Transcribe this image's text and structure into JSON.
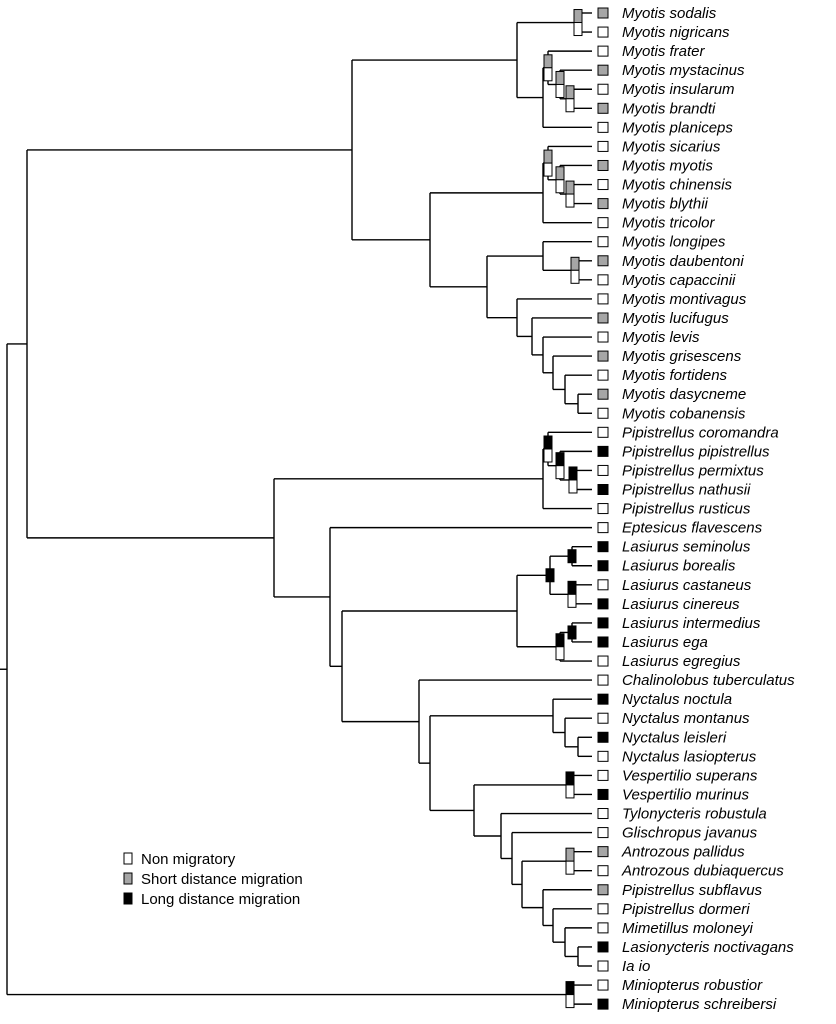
{
  "colors": {
    "non": "#ffffff",
    "short": "#a6a6a6",
    "long": "#000000",
    "line": "#000000"
  },
  "legend": [
    {
      "label": "Non migratory",
      "state": "non"
    },
    {
      "label": "Short distance migration",
      "state": "short"
    },
    {
      "label": "Long distance migration",
      "state": "long"
    }
  ],
  "taxa": [
    {
      "name": "Myotis sodalis",
      "state": "short"
    },
    {
      "name": "Myotis nigricans",
      "state": "non"
    },
    {
      "name": "Myotis frater",
      "state": "non"
    },
    {
      "name": "Myotis mystacinus",
      "state": "short"
    },
    {
      "name": "Myotis insularum",
      "state": "non"
    },
    {
      "name": "Myotis brandti",
      "state": "short"
    },
    {
      "name": "Myotis planiceps",
      "state": "non"
    },
    {
      "name": "Myotis sicarius",
      "state": "non"
    },
    {
      "name": "Myotis myotis",
      "state": "short"
    },
    {
      "name": "Myotis chinensis",
      "state": "non"
    },
    {
      "name": "Myotis blythii",
      "state": "short"
    },
    {
      "name": "Myotis tricolor",
      "state": "non"
    },
    {
      "name": "Myotis longipes",
      "state": "non"
    },
    {
      "name": "Myotis daubentoni",
      "state": "short"
    },
    {
      "name": "Myotis capaccinii",
      "state": "non"
    },
    {
      "name": "Myotis montivagus",
      "state": "non"
    },
    {
      "name": "Myotis lucifugus",
      "state": "short"
    },
    {
      "name": "Myotis levis",
      "state": "non"
    },
    {
      "name": "Myotis grisescens",
      "state": "short"
    },
    {
      "name": "Myotis fortidens",
      "state": "non"
    },
    {
      "name": "Myotis dasycneme",
      "state": "short"
    },
    {
      "name": "Myotis cobanensis",
      "state": "non"
    },
    {
      "name": "Pipistrellus coromandra",
      "state": "non"
    },
    {
      "name": "Pipistrellus pipistrellus",
      "state": "long"
    },
    {
      "name": "Pipistrellus permixtus",
      "state": "non"
    },
    {
      "name": "Pipistrellus nathusii",
      "state": "long"
    },
    {
      "name": "Pipistrellus rusticus",
      "state": "non"
    },
    {
      "name": "Eptesicus flavescens",
      "state": "non"
    },
    {
      "name": "Lasiurus seminolus",
      "state": "long"
    },
    {
      "name": "Lasiurus borealis",
      "state": "long"
    },
    {
      "name": "Lasiurus castaneus",
      "state": "non"
    },
    {
      "name": "Lasiurus cinereus",
      "state": "long"
    },
    {
      "name": "Lasiurus intermedius",
      "state": "long"
    },
    {
      "name": "Lasiurus ega",
      "state": "long"
    },
    {
      "name": "Lasiurus egregius",
      "state": "non"
    },
    {
      "name": "Chalinolobus tuberculatus",
      "state": "non"
    },
    {
      "name": "Nyctalus noctula",
      "state": "long"
    },
    {
      "name": "Nyctalus montanus",
      "state": "non"
    },
    {
      "name": "Nyctalus leisleri",
      "state": "long"
    },
    {
      "name": "Nyctalus lasiopterus",
      "state": "non"
    },
    {
      "name": "Vespertilio superans",
      "state": "non"
    },
    {
      "name": "Vespertilio murinus",
      "state": "long"
    },
    {
      "name": "Tylonycteris robustula",
      "state": "non"
    },
    {
      "name": "Glischropus javanus",
      "state": "non"
    },
    {
      "name": "Antrozous pallidus",
      "state": "short"
    },
    {
      "name": "Antrozous dubiaquercus",
      "state": "non"
    },
    {
      "name": "Pipistrellus subflavus",
      "state": "short"
    },
    {
      "name": "Pipistrellus dormeri",
      "state": "non"
    },
    {
      "name": "Mimetillus moloneyi",
      "state": "non"
    },
    {
      "name": "Lasionycteris noctivagans",
      "state": "long"
    },
    {
      "name": "Ia io",
      "state": "non"
    },
    {
      "name": "Miniopterus robustior",
      "state": "non"
    },
    {
      "name": "Miniopterus schreibersi",
      "state": "long"
    }
  ],
  "node_states": [
    {
      "id": "sod-nig",
      "states": [
        "short",
        "non"
      ]
    },
    {
      "id": "frater-group",
      "states": [
        "short",
        "non"
      ]
    },
    {
      "id": "myst-ins-bra",
      "states": [
        "short",
        "non"
      ]
    },
    {
      "id": "ins-bra",
      "states": [
        "short",
        "non"
      ]
    },
    {
      "id": "sicarius-group",
      "states": [
        "short",
        "non"
      ]
    },
    {
      "id": "myo-chi-bly",
      "states": [
        "short",
        "non"
      ]
    },
    {
      "id": "chi-bly",
      "states": [
        "short",
        "non"
      ]
    },
    {
      "id": "dau-cap",
      "states": [
        "short",
        "non"
      ]
    },
    {
      "id": "pip-clade",
      "states": [
        "long",
        "non"
      ]
    },
    {
      "id": "pip-inner",
      "states": [
        "long",
        "non"
      ]
    },
    {
      "id": "per-nat",
      "states": [
        "long",
        "non"
      ]
    },
    {
      "id": "lasiurus",
      "states": [
        "long"
      ]
    },
    {
      "id": "las-sbcc",
      "states": [
        "long"
      ]
    },
    {
      "id": "sem-bor",
      "states": [
        "long"
      ]
    },
    {
      "id": "cas-cin",
      "states": [
        "long",
        "non"
      ]
    },
    {
      "id": "las-ieg",
      "states": [
        "long",
        "non"
      ]
    },
    {
      "id": "int-ega",
      "states": [
        "long"
      ]
    },
    {
      "id": "vespertilio",
      "states": [
        "long",
        "non"
      ]
    },
    {
      "id": "antrozous",
      "states": [
        "short",
        "non"
      ]
    },
    {
      "id": "miniopterus",
      "states": [
        "long",
        "non"
      ]
    }
  ]
}
